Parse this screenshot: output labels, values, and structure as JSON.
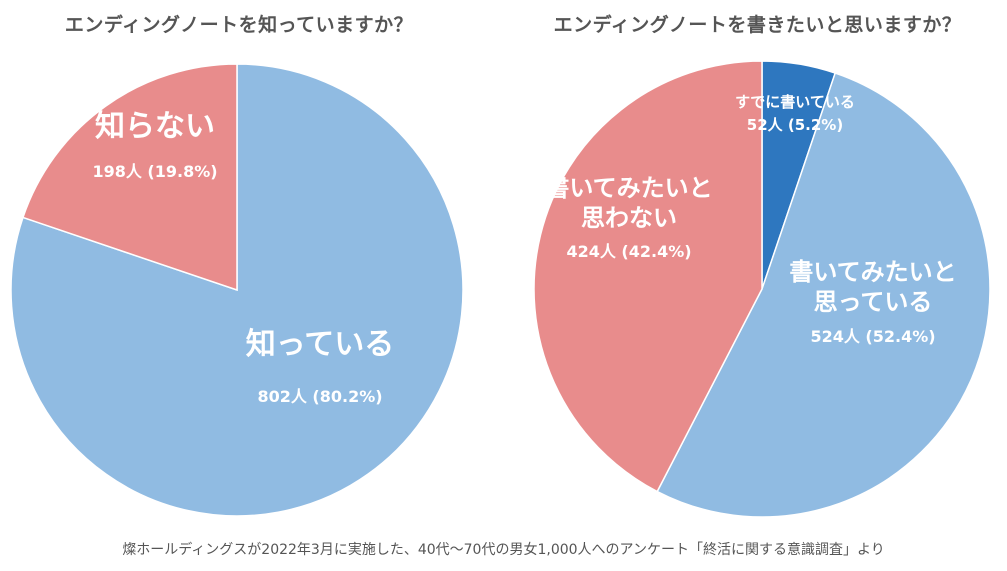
{
  "chart_data": [
    {
      "type": "pie",
      "title": "エンディングノートを知っていますか？",
      "slices": [
        {
          "name": "知っている",
          "name_lines": [
            "知っている"
          ],
          "value": 80.2,
          "count_label": "802人 (80.2%)",
          "color": "#90bbe2"
        },
        {
          "name": "知らない",
          "name_lines": [
            "知らない"
          ],
          "value": 19.8,
          "count_label": "198人 (19.8%)",
          "color": "#e88c8c"
        }
      ]
    },
    {
      "type": "pie",
      "title": "エンディングノートを書きたいと思いますか？",
      "slices": [
        {
          "name": "すでに書いている",
          "name_lines": [
            "すでに書いている"
          ],
          "value": 5.2,
          "count_label": "52人 (5.2%)",
          "color": "#2e77bf"
        },
        {
          "name": "書いてみたいと思っている",
          "name_lines": [
            "書いてみたいと",
            "思っている"
          ],
          "value": 52.4,
          "count_label": "524人 (52.4%)",
          "color": "#90bbe2"
        },
        {
          "name": "書いてみたいと思わない",
          "name_lines": [
            "書いてみたいと",
            "思わない"
          ],
          "value": 42.4,
          "count_label": "424人 (42.4%)",
          "color": "#e88c8c"
        }
      ]
    }
  ],
  "footnote": "燦ホールディングスが2022年3月に実施した、40代〜70代の男女1,000人へのアンケート「終活に関する意識調査」より"
}
